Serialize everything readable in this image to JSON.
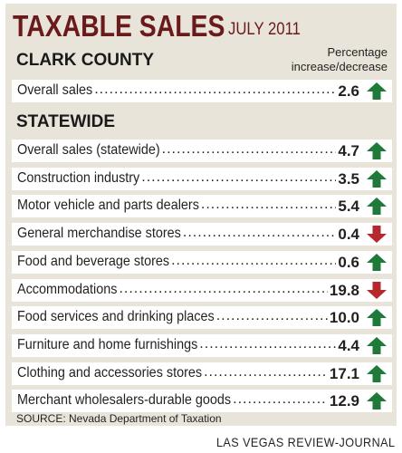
{
  "title": "TAXABLE SALES",
  "date": "JULY 2011",
  "pct_header_line1": "Percentage",
  "pct_header_line2": "increase/decrease",
  "source": "SOURCE: Nevada Department of Taxation",
  "credit": "LAS VEGAS REVIEW-JOURNAL",
  "colors": {
    "up": "#1f7a3a",
    "down": "#b4282e",
    "title": "#6b1a1c",
    "panel": "#e8e4da"
  },
  "chart_data": {
    "type": "table",
    "sections": [
      {
        "name": "CLARK COUNTY",
        "rows": [
          {
            "label": "Overall sales",
            "value": "2.6",
            "direction": "up"
          }
        ]
      },
      {
        "name": "STATEWIDE",
        "rows": [
          {
            "label": "Overall sales (statewide)",
            "value": "4.7",
            "direction": "up"
          },
          {
            "label": "Construction industry",
            "value": "3.5",
            "direction": "up"
          },
          {
            "label": "Motor vehicle and parts dealers",
            "value": "5.4",
            "direction": "up"
          },
          {
            "label": "General merchandise stores",
            "value": "0.4",
            "direction": "down"
          },
          {
            "label": "Food and beverage stores",
            "value": "0.6",
            "direction": "up"
          },
          {
            "label": "Accommodations",
            "value": "19.8",
            "direction": "down"
          },
          {
            "label": "Food services and drinking places",
            "value": "10.0",
            "direction": "up"
          },
          {
            "label": "Furniture and home furnishings",
            "value": "4.4",
            "direction": "up"
          },
          {
            "label": "Clothing and accessories stores",
            "value": "17.1",
            "direction": "up"
          },
          {
            "label": "Merchant wholesalers-durable goods",
            "value": "12.9",
            "direction": "up"
          }
        ]
      }
    ]
  }
}
